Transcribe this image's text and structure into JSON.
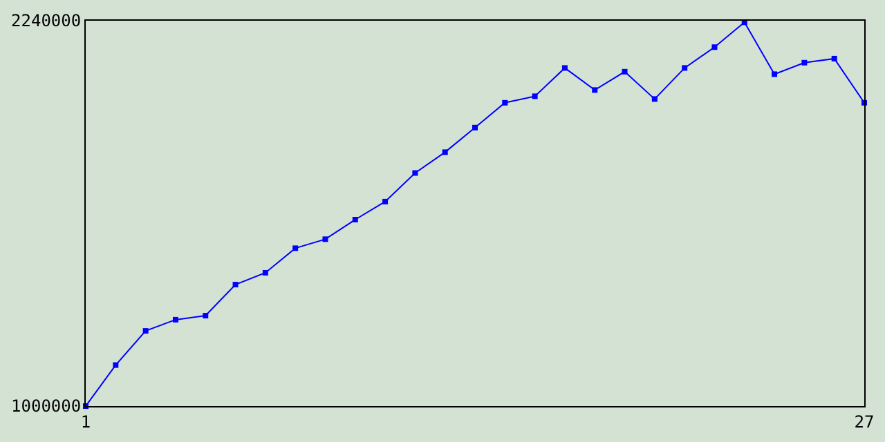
{
  "chart_data": {
    "type": "line",
    "x": [
      1,
      2,
      3,
      4,
      5,
      6,
      7,
      8,
      9,
      10,
      11,
      12,
      13,
      14,
      15,
      16,
      17,
      18,
      19,
      20,
      21,
      22,
      23,
      24,
      25,
      26,
      27
    ],
    "series": [
      {
        "color": "#0000ff",
        "values": [
          1000000,
          1132000,
          1242000,
          1278000,
          1291000,
          1391000,
          1429000,
          1508000,
          1537000,
          1600000,
          1658000,
          1750000,
          1817000,
          1896000,
          1976000,
          1997000,
          2088000,
          2017000,
          2076000,
          1988000,
          2088000,
          2155000,
          2235000,
          2068000,
          2105000,
          2118000,
          1976000
        ]
      }
    ],
    "xlim": [
      1,
      27
    ],
    "xticks": [
      1,
      27
    ],
    "ylim": [
      1000000,
      2240000
    ],
    "yticks": [
      1000000,
      2240000
    ],
    "legend": false,
    "marker": "square",
    "line_style": "solid"
  }
}
